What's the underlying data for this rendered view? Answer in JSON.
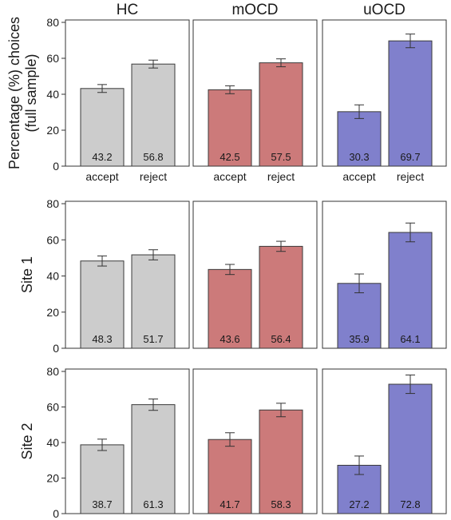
{
  "chart_data": {
    "type": "bar",
    "ylabel": "Percentage (%) choices\n(full sample)",
    "ylim": [
      0,
      80
    ],
    "yticks": [
      0,
      20,
      40,
      60,
      80
    ],
    "grid": false,
    "columns": [
      "HC",
      "mOCD",
      "uOCD"
    ],
    "categories": [
      "accept",
      "reject"
    ],
    "colors": {
      "HC": "#cccccc",
      "mOCD": "#cc7a7a",
      "uOCD": "#8080cc"
    },
    "rows": [
      {
        "label": "",
        "show_categories": true,
        "panels": [
          {
            "group": "HC",
            "values": [
              43.2,
              56.8
            ],
            "labels": [
              "43.2",
              "56.8"
            ],
            "errors": [
              2.2,
              2.2
            ]
          },
          {
            "group": "mOCD",
            "values": [
              42.5,
              57.5
            ],
            "labels": [
              "42.5",
              "57.5"
            ],
            "errors": [
              2.2,
              2.2
            ]
          },
          {
            "group": "uOCD",
            "values": [
              30.3,
              69.7
            ],
            "labels": [
              "30.3",
              "69.7"
            ],
            "errors": [
              3.8,
              3.8
            ]
          }
        ]
      },
      {
        "label": "Site 1",
        "show_categories": false,
        "panels": [
          {
            "group": "HC",
            "values": [
              48.3,
              51.7
            ],
            "labels": [
              "48.3",
              "51.7"
            ],
            "errors": [
              2.8,
              2.8
            ]
          },
          {
            "group": "mOCD",
            "values": [
              43.6,
              56.4
            ],
            "labels": [
              "43.6",
              "56.4"
            ],
            "errors": [
              2.8,
              2.8
            ]
          },
          {
            "group": "uOCD",
            "values": [
              35.9,
              64.1
            ],
            "labels": [
              "35.9",
              "64.1"
            ],
            "errors": [
              5.2,
              5.2
            ]
          }
        ]
      },
      {
        "label": "Site 2",
        "show_categories": false,
        "panels": [
          {
            "group": "HC",
            "values": [
              38.7,
              61.3
            ],
            "labels": [
              "38.7",
              "61.3"
            ],
            "errors": [
              3.2,
              3.2
            ]
          },
          {
            "group": "mOCD",
            "values": [
              41.7,
              58.3
            ],
            "labels": [
              "41.7",
              "58.3"
            ],
            "errors": [
              3.8,
              3.8
            ]
          },
          {
            "group": "uOCD",
            "values": [
              27.2,
              72.8
            ],
            "labels": [
              "27.2",
              "72.8"
            ],
            "errors": [
              5.2,
              5.2
            ]
          }
        ]
      }
    ]
  }
}
